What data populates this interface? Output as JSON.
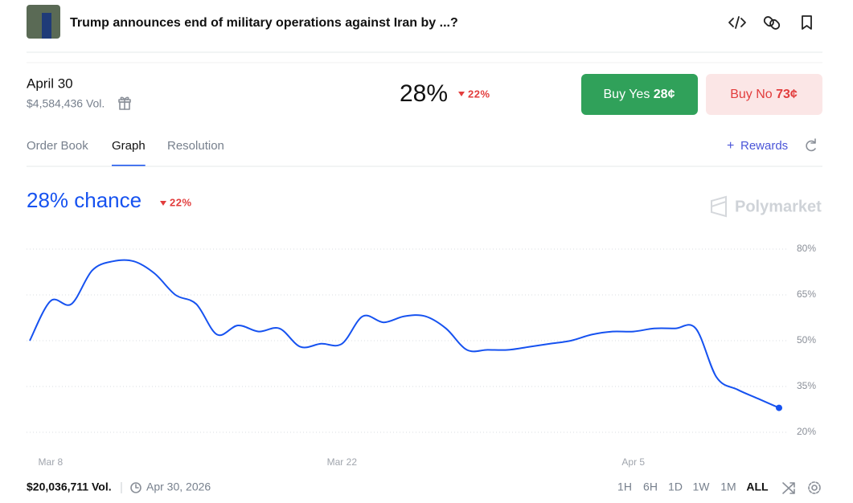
{
  "header": {
    "title": "Trump announces end of military operations against Iran by ...?"
  },
  "market": {
    "date": "April 30",
    "volume": "$4,584,436 Vol.",
    "probability": "28%",
    "change": "22%",
    "buy_yes": {
      "label": "Buy Yes",
      "price": "28¢"
    },
    "buy_no": {
      "label": "Buy No",
      "price": "73¢"
    }
  },
  "tabs": [
    "Order Book",
    "Graph",
    "Resolution"
  ],
  "active_tab": 1,
  "rewards": "Rewards",
  "chart_data": {
    "type": "line",
    "title": "28% chance",
    "change": "22%",
    "brand": "Polymarket",
    "categories": [
      null,
      "Mar 8",
      null,
      null,
      null,
      null,
      null,
      null,
      null,
      null,
      null,
      null,
      null,
      null,
      null,
      "Mar 22",
      null,
      null,
      null,
      null,
      null,
      null,
      null,
      null,
      null,
      null,
      null,
      null,
      null,
      "Apr 5",
      null,
      null,
      null,
      null,
      null,
      null,
      null
    ],
    "series": [
      {
        "color": "#1652f0",
        "values": [
          50,
          63,
          62,
          73,
          76,
          76,
          72,
          65,
          62,
          52,
          55,
          53,
          54,
          48,
          49,
          49,
          58,
          56,
          58,
          58,
          54,
          47,
          47,
          47,
          48,
          49,
          50,
          52,
          53,
          53,
          54,
          54,
          54,
          38,
          34,
          31,
          28
        ]
      }
    ],
    "ylim": [
      20,
      80
    ],
    "yticks": [
      {
        "value": 80,
        "label": "80%"
      },
      {
        "value": 65,
        "label": "65%"
      },
      {
        "value": 50,
        "label": "50%"
      },
      {
        "value": 35,
        "label": "35%"
      },
      {
        "value": 20,
        "label": "20%"
      }
    ],
    "grid": true
  },
  "footer": {
    "volume": "$20,036,711 Vol.",
    "end_date": "Apr 30, 2026",
    "ranges": [
      "1H",
      "6H",
      "1D",
      "1W",
      "1M",
      "ALL"
    ],
    "active_range": 5
  }
}
